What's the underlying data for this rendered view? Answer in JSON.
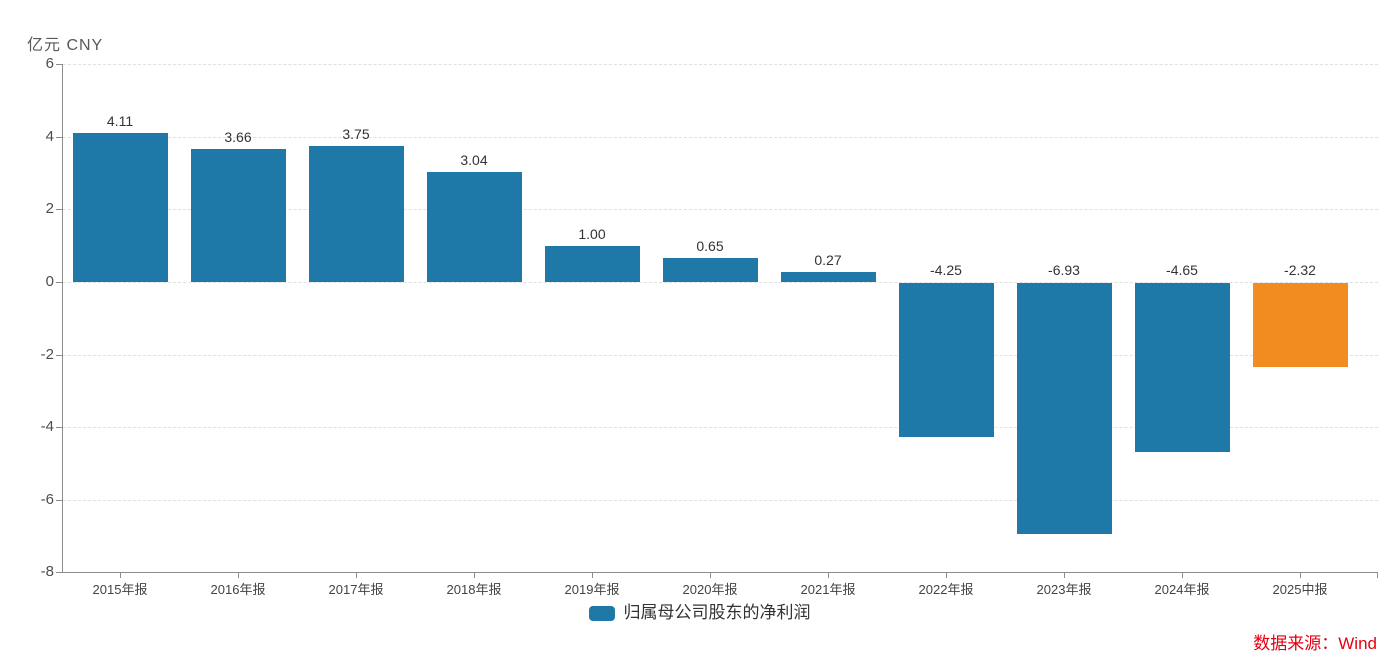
{
  "unit_label": "亿元 CNY",
  "chart_data": {
    "type": "bar",
    "title": "",
    "unit_label": "亿元 CNY",
    "categories": [
      "2015年报",
      "2016年报",
      "2017年报",
      "2018年报",
      "2019年报",
      "2020年报",
      "2021年报",
      "2022年报",
      "2023年报",
      "2024年报",
      "2025中报"
    ],
    "values": [
      4.11,
      3.66,
      3.75,
      3.04,
      1.0,
      0.65,
      0.27,
      -4.25,
      -6.93,
      -4.65,
      -2.32
    ],
    "value_labels": [
      "4.11",
      "3.66",
      "3.75",
      "3.04",
      "1.00",
      "0.65",
      "0.27",
      "-4.25",
      "-6.93",
      "-4.65",
      "-2.32"
    ],
    "series_name": "归属母公司股东的净利润",
    "highlight_index": 10,
    "ylim": [
      -8,
      6
    ],
    "yticks": [
      6,
      4,
      2,
      0,
      -2,
      -4,
      -6,
      -8
    ],
    "grid": true,
    "legend_position": "bottom",
    "colors": {
      "bar": "#1E78A8",
      "highlight": "#F28C21"
    }
  },
  "legend": {
    "label": "归属母公司股东的净利润"
  },
  "footer": {
    "source_label": "数据来源：Wind",
    "color": "#E60012"
  }
}
